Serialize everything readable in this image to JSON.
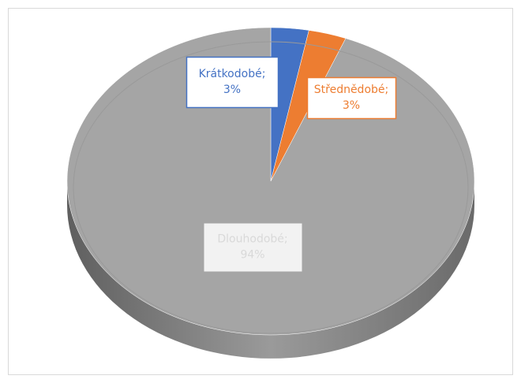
{
  "chart_data": {
    "type": "pie",
    "categories": [
      "Krátkodobé;",
      "Střednědobé;",
      "Dlouhodobé;"
    ],
    "values": [
      3,
      3,
      94
    ],
    "value_labels": [
      "3%",
      "3%",
      "94%"
    ],
    "colors": [
      "#4472c4",
      "#ed7d31",
      "#a5a5a5"
    ],
    "label_colors": [
      "#4472c4",
      "#ed7d31",
      "#d9d9d9"
    ]
  }
}
